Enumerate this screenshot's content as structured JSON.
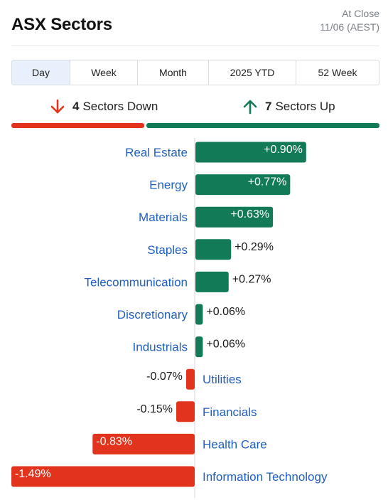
{
  "header": {
    "title": "ASX Sectors",
    "status": "At Close",
    "date": "11/06 (AEST)"
  },
  "tabs": [
    {
      "label": "Day",
      "active": true
    },
    {
      "label": "Week",
      "active": false
    },
    {
      "label": "Month",
      "active": false
    },
    {
      "label": "2025 YTD",
      "active": false
    },
    {
      "label": "52 Week",
      "active": false
    }
  ],
  "summary": {
    "down_count": "4",
    "down_label": "Sectors Down",
    "up_count": "7",
    "up_label": "Sectors Up",
    "down_color": "#e2341d",
    "up_color": "#137a58"
  },
  "chart_data": {
    "type": "bar",
    "orientation": "horizontal",
    "categories": [
      "Real Estate",
      "Energy",
      "Materials",
      "Staples",
      "Telecommunication",
      "Discretionary",
      "Industrials",
      "Utilities",
      "Financials",
      "Health Care",
      "Information Technology"
    ],
    "values": [
      0.9,
      0.77,
      0.63,
      0.29,
      0.27,
      0.06,
      0.06,
      -0.07,
      -0.15,
      -0.83,
      -1.49
    ],
    "labels": [
      "+0.90%",
      "+0.77%",
      "+0.63%",
      "+0.29%",
      "+0.27%",
      "+0.06%",
      "+0.06%",
      "-0.07%",
      "-0.15%",
      "-0.83%",
      "-1.49%"
    ],
    "positive_color": "#137a58",
    "negative_color": "#e2341d",
    "category_color": "#1f5fbf"
  }
}
